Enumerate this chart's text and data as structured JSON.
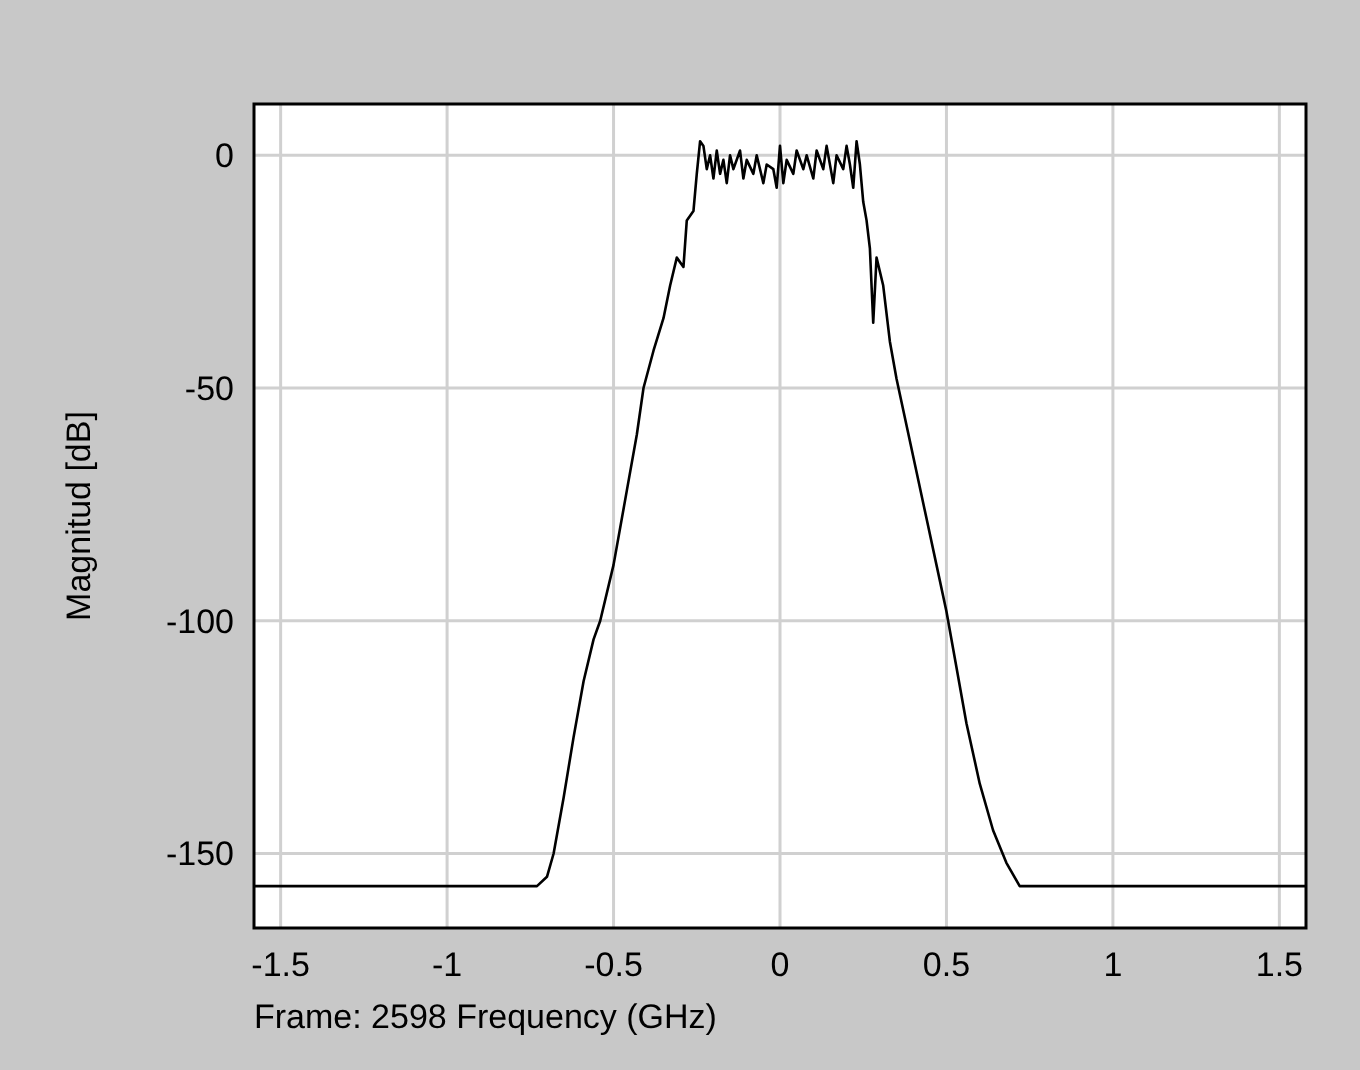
{
  "chart_data": {
    "type": "line",
    "xlabel": "Frame: 2598  Frequency (GHz)",
    "ylabel": "Magnitud [dB]",
    "xlim": [
      -1.58,
      1.58
    ],
    "ylim": [
      -166,
      11
    ],
    "xticks": [
      -1.5,
      -1,
      -0.5,
      0,
      0.5,
      1,
      1.5
    ],
    "yticks": [
      -150,
      -100,
      -50,
      0
    ],
    "grid": true,
    "series": [
      {
        "color": "#000000",
        "x": [
          -1.58,
          -0.73,
          -0.7,
          -0.68,
          -0.65,
          -0.62,
          -0.59,
          -0.56,
          -0.54,
          -0.5,
          -0.46,
          -0.43,
          -0.41,
          -0.38,
          -0.35,
          -0.33,
          -0.31,
          -0.29,
          -0.28,
          -0.26,
          -0.25,
          -0.24,
          -0.23,
          -0.22,
          -0.21,
          -0.2,
          -0.19,
          -0.18,
          -0.17,
          -0.16,
          -0.15,
          -0.14,
          -0.12,
          -0.11,
          -0.1,
          -0.08,
          -0.07,
          -0.05,
          -0.04,
          -0.02,
          -0.01,
          0,
          0.01,
          0.02,
          0.04,
          0.05,
          0.07,
          0.08,
          0.1,
          0.11,
          0.13,
          0.14,
          0.16,
          0.17,
          0.19,
          0.2,
          0.21,
          0.22,
          0.23,
          0.24,
          0.25,
          0.26,
          0.27,
          0.28,
          0.29,
          0.31,
          0.33,
          0.35,
          0.38,
          0.41,
          0.44,
          0.47,
          0.5,
          0.53,
          0.56,
          0.6,
          0.64,
          0.68,
          0.72,
          1.58
        ],
        "values": [
          -157,
          -157,
          -155,
          -150,
          -138,
          -125,
          -113,
          -104,
          -100,
          -88,
          -72,
          -60,
          -50,
          -42,
          -35,
          -28,
          -22,
          -24,
          -14,
          -12,
          -4,
          3,
          2,
          -3,
          0,
          -5,
          1,
          -4,
          -1,
          -6,
          0,
          -3,
          1,
          -5,
          -1,
          -4,
          0,
          -6,
          -2,
          -3,
          -7,
          2,
          -6,
          -1,
          -4,
          1,
          -3,
          0,
          -5,
          1,
          -3,
          2,
          -6,
          0,
          -3,
          2,
          -2,
          -7,
          3,
          -2,
          -10,
          -14,
          -20,
          -36,
          -22,
          -28,
          -40,
          -48,
          -58,
          -68,
          -78,
          -88,
          -98,
          -110,
          -122,
          -135,
          -145,
          -152,
          -157,
          -157
        ]
      }
    ]
  }
}
